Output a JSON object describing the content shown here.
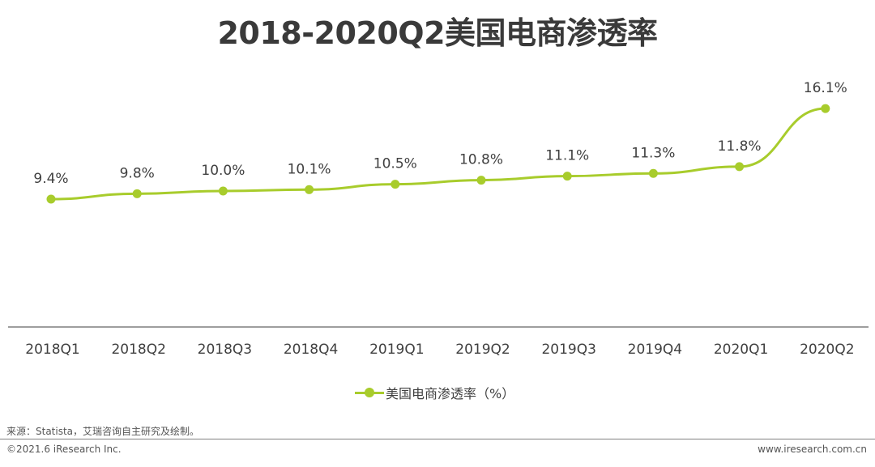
{
  "page": {
    "source": "来源：Statista，艾瑞咨询自主研究及绘制。",
    "copyright": "©2021.6 iResearch Inc.",
    "website": "www.iresearch.com.cn"
  },
  "chart_data": {
    "type": "line",
    "title": "2018-2020Q2美国电商渗透率",
    "categories": [
      "2018Q1",
      "2018Q2",
      "2018Q3",
      "2018Q4",
      "2019Q1",
      "2019Q2",
      "2019Q3",
      "2019Q4",
      "2020Q1",
      "2020Q2"
    ],
    "series": [
      {
        "name": "美国电商渗透率（%）",
        "values": [
          9.4,
          9.8,
          10.0,
          10.1,
          10.5,
          10.8,
          11.1,
          11.3,
          11.8,
          16.1
        ],
        "labels": [
          "9.4%",
          "9.8%",
          "10.0%",
          "10.1%",
          "10.5%",
          "10.8%",
          "11.1%",
          "11.3%",
          "11.8%",
          "16.1%"
        ],
        "color": "#a8cc2c"
      }
    ],
    "grid": false,
    "legend": "bottom-center"
  }
}
